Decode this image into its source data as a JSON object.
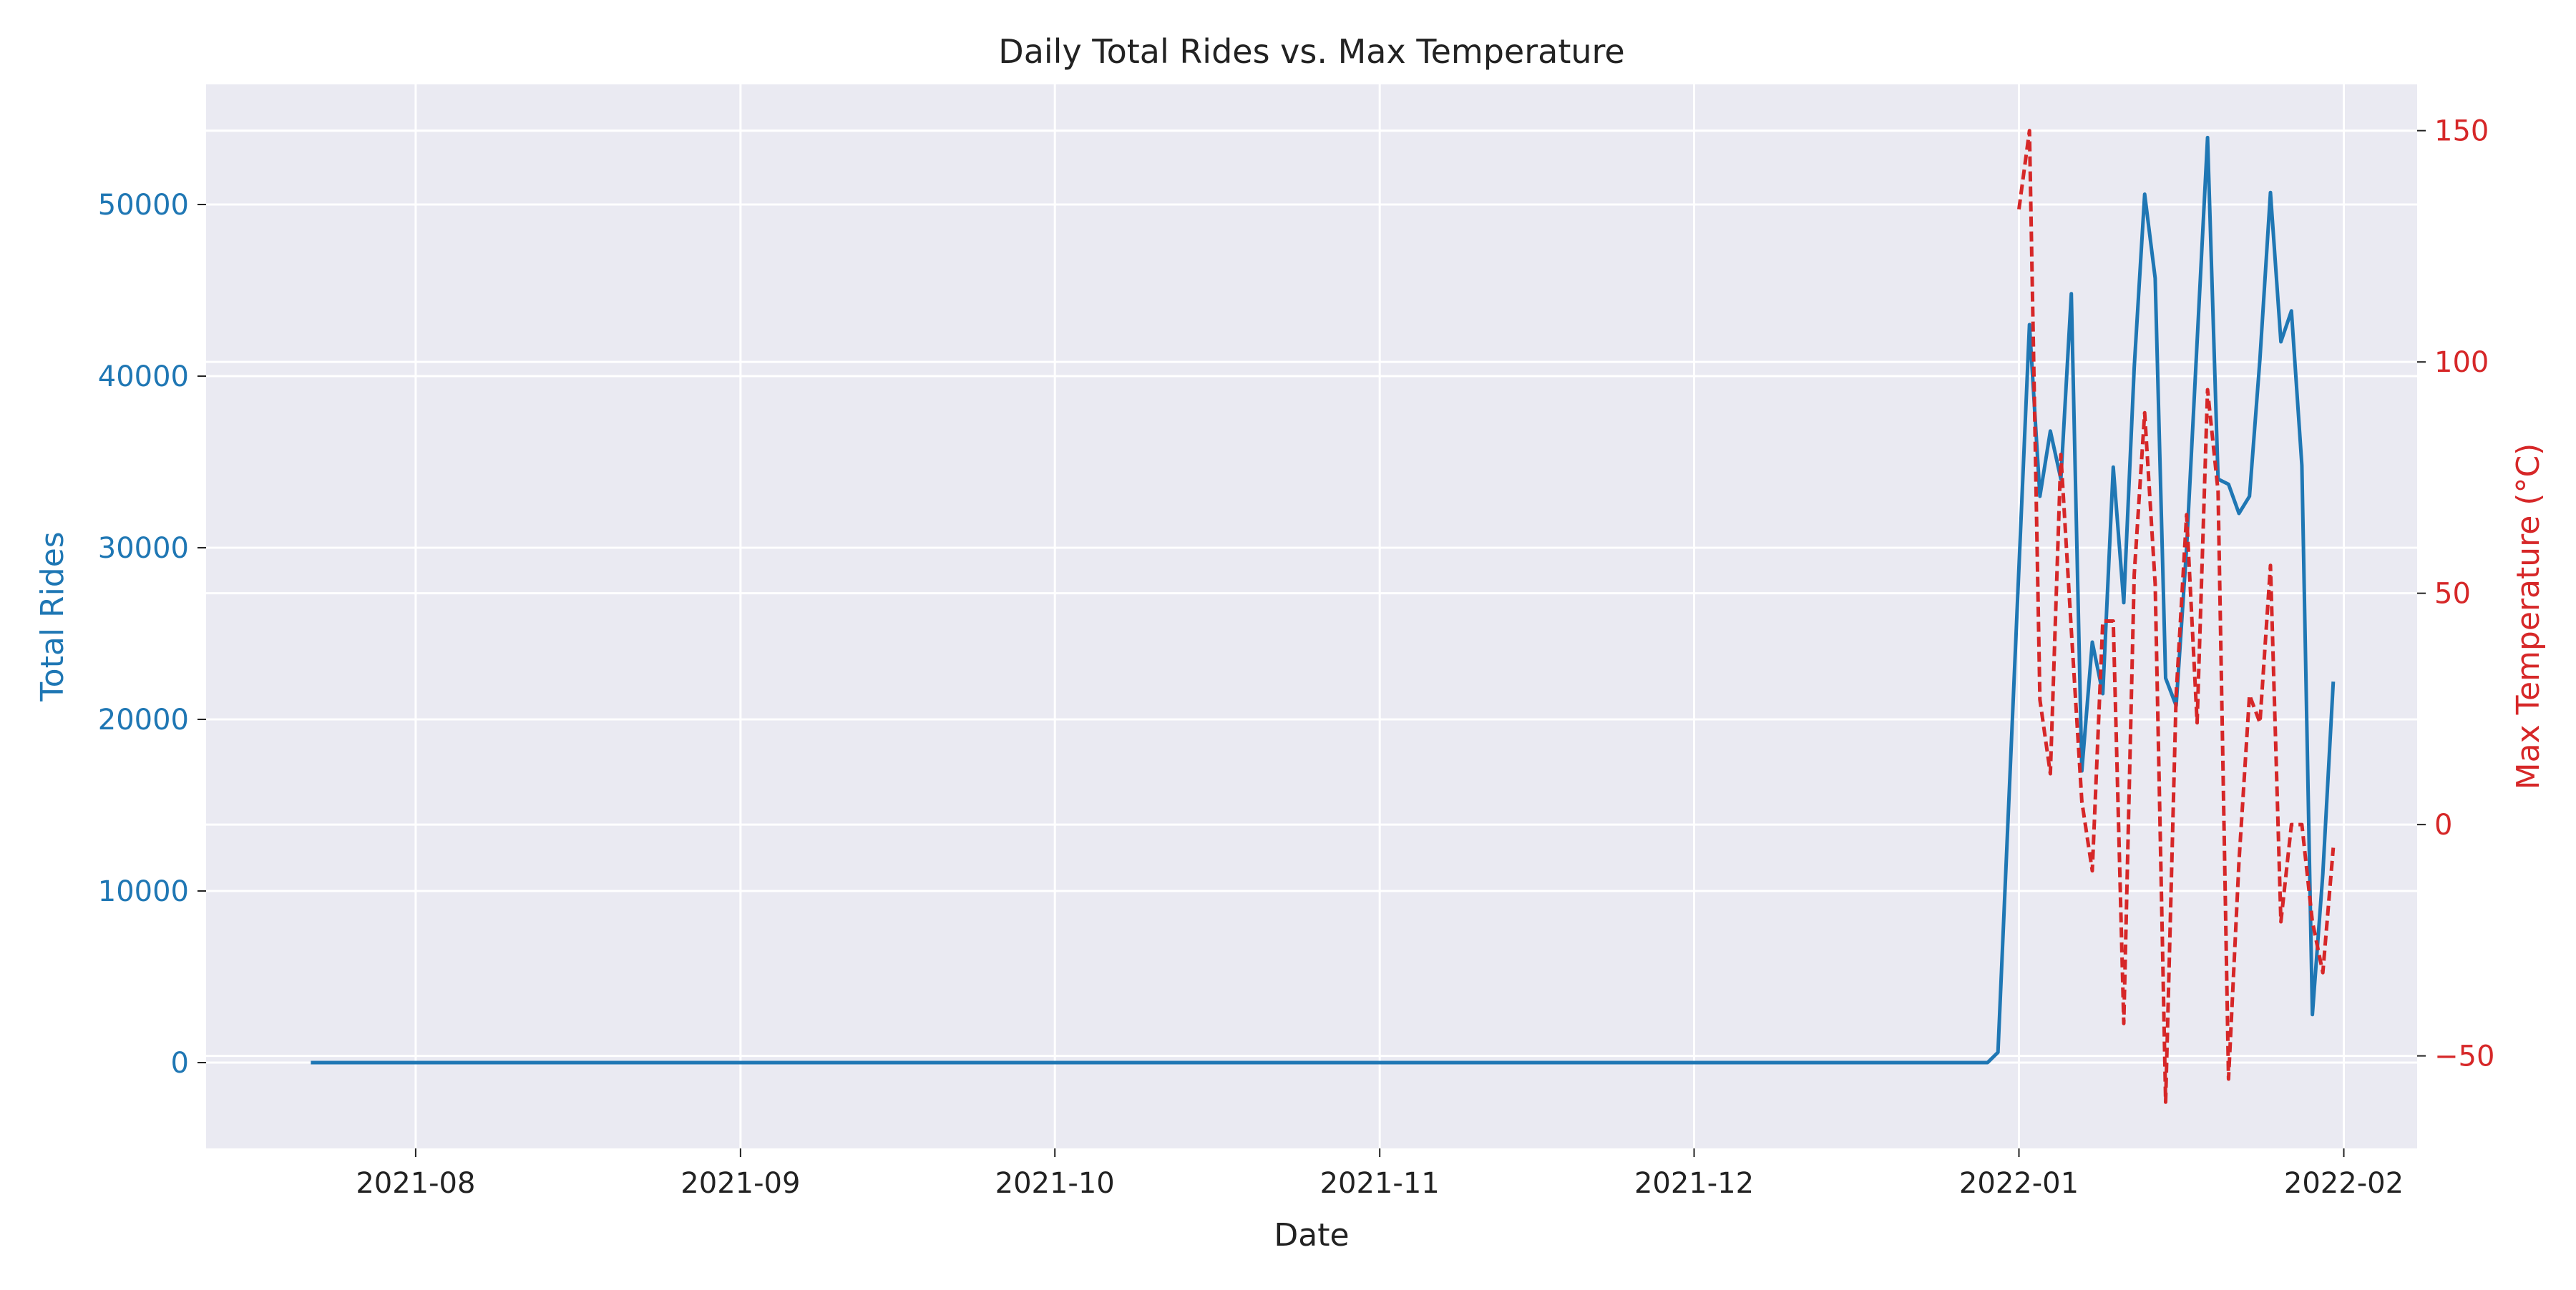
{
  "colors": {
    "rides": "#1f77b4",
    "temperature": "#d62728",
    "plot_background": "#eaeaf2",
    "grid": "#ffffff",
    "text": "#222222"
  },
  "chart_data": {
    "type": "line",
    "title": "Daily Total Rides vs. Max Temperature",
    "xlabel": "Date",
    "ylabel_left": "Total Rides",
    "ylabel_right": "Max Temperature (°C)",
    "xlim": [
      "2021-07-12",
      "2022-02-08"
    ],
    "ylim_left": [
      -5000,
      57000
    ],
    "ylim_right": [
      -70,
      160
    ],
    "grid": true,
    "x_ticks": [
      "2021-08-01",
      "2021-09-01",
      "2021-10-01",
      "2021-11-01",
      "2021-12-01",
      "2022-01-01",
      "2022-02-01"
    ],
    "x_tick_labels": [
      "2021-08",
      "2021-09",
      "2021-10",
      "2021-11",
      "2021-12",
      "2022-01",
      "2022-02"
    ],
    "y_left_ticks": [
      0,
      10000,
      20000,
      30000,
      40000,
      50000
    ],
    "y_right_ticks": [
      -50,
      0,
      50,
      100,
      150
    ],
    "series": [
      {
        "axis": "left",
        "style": "solid",
        "color": "#1f77b4",
        "points": [
          [
            "2021-07-22",
            0
          ],
          [
            "2021-12-29",
            0
          ],
          [
            "2021-12-30",
            600
          ],
          [
            "2022-01-02",
            43000
          ],
          [
            "2022-01-03",
            33000
          ],
          [
            "2022-01-04",
            36800
          ],
          [
            "2022-01-05",
            34000
          ],
          [
            "2022-01-06",
            44800
          ],
          [
            "2022-01-07",
            17000
          ],
          [
            "2022-01-08",
            24500
          ],
          [
            "2022-01-09",
            21500
          ],
          [
            "2022-01-10",
            34700
          ],
          [
            "2022-01-11",
            26800
          ],
          [
            "2022-01-12",
            40500
          ],
          [
            "2022-01-13",
            50600
          ],
          [
            "2022-01-14",
            45700
          ],
          [
            "2022-01-15",
            22400
          ],
          [
            "2022-01-16",
            20800
          ],
          [
            "2022-01-17",
            30000
          ],
          [
            "2022-01-18",
            42000
          ],
          [
            "2022-01-19",
            53900
          ],
          [
            "2022-01-20",
            34000
          ],
          [
            "2022-01-21",
            33700
          ],
          [
            "2022-01-22",
            32000
          ],
          [
            "2022-01-23",
            33000
          ],
          [
            "2022-01-24",
            41000
          ],
          [
            "2022-01-25",
            50700
          ],
          [
            "2022-01-26",
            42000
          ],
          [
            "2022-01-27",
            43800
          ],
          [
            "2022-01-28",
            34800
          ],
          [
            "2022-01-29",
            2800
          ],
          [
            "2022-01-30",
            11000
          ],
          [
            "2022-01-31",
            22200
          ]
        ]
      },
      {
        "axis": "right",
        "style": "dashed",
        "color": "#d62728",
        "points": [
          [
            "2022-01-01",
            133
          ],
          [
            "2022-01-02",
            150
          ],
          [
            "2022-01-03",
            27
          ],
          [
            "2022-01-04",
            11
          ],
          [
            "2022-01-05",
            80
          ],
          [
            "2022-01-06",
            42
          ],
          [
            "2022-01-07",
            5
          ],
          [
            "2022-01-08",
            -10
          ],
          [
            "2022-01-09",
            44
          ],
          [
            "2022-01-10",
            44
          ],
          [
            "2022-01-11",
            -43
          ],
          [
            "2022-01-12",
            54
          ],
          [
            "2022-01-13",
            89
          ],
          [
            "2022-01-14",
            52
          ],
          [
            "2022-01-15",
            -60
          ],
          [
            "2022-01-16",
            28
          ],
          [
            "2022-01-17",
            67
          ],
          [
            "2022-01-18",
            22
          ],
          [
            "2022-01-19",
            94
          ],
          [
            "2022-01-20",
            72
          ],
          [
            "2022-01-21",
            -55
          ],
          [
            "2022-01-22",
            -8
          ],
          [
            "2022-01-23",
            28
          ],
          [
            "2022-01-24",
            22
          ],
          [
            "2022-01-25",
            56
          ],
          [
            "2022-01-26",
            -21
          ],
          [
            "2022-01-27",
            0
          ],
          [
            "2022-01-28",
            0
          ],
          [
            "2022-01-29",
            -21
          ],
          [
            "2022-01-30",
            -32
          ],
          [
            "2022-01-31",
            -5
          ]
        ]
      }
    ]
  }
}
